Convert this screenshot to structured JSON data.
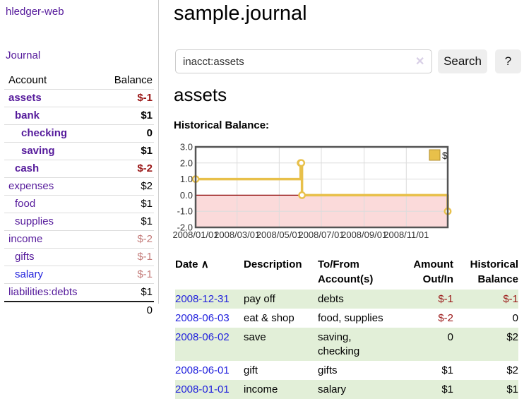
{
  "app": {
    "brand": "hledger-web",
    "nav": {
      "journal": "Journal"
    }
  },
  "sidebar": {
    "columns": {
      "account": "Account",
      "balance": "Balance"
    },
    "accounts": [
      {
        "name": "assets",
        "depth": 0,
        "bold": true,
        "link": "purple",
        "balance": "$-1",
        "balance_tone": "neg-strong"
      },
      {
        "name": "bank",
        "depth": 1,
        "bold": true,
        "link": "purple",
        "balance": "$1",
        "balance_tone": "plain"
      },
      {
        "name": "checking",
        "depth": 2,
        "bold": true,
        "link": "purple",
        "balance": "0",
        "balance_tone": "plain"
      },
      {
        "name": "saving",
        "depth": 2,
        "bold": true,
        "link": "purple",
        "balance": "$1",
        "balance_tone": "plain"
      },
      {
        "name": "cash",
        "depth": 1,
        "bold": true,
        "link": "purple",
        "balance": "$-2",
        "balance_tone": "neg-strong"
      },
      {
        "name": "expenses",
        "depth": 0,
        "bold": false,
        "link": "purple",
        "balance": "$2",
        "balance_tone": "plain"
      },
      {
        "name": "food",
        "depth": 1,
        "bold": false,
        "link": "purple",
        "balance": "$1",
        "balance_tone": "plain"
      },
      {
        "name": "supplies",
        "depth": 1,
        "bold": false,
        "link": "purple",
        "balance": "$1",
        "balance_tone": "plain"
      },
      {
        "name": "income",
        "depth": 0,
        "bold": false,
        "link": "purple",
        "balance": "$-2",
        "balance_tone": "neg-soft"
      },
      {
        "name": "gifts",
        "depth": 1,
        "bold": false,
        "link": "purple",
        "balance": "$-1",
        "balance_tone": "neg-soft"
      },
      {
        "name": "salary",
        "depth": 1,
        "bold": false,
        "link": "blue",
        "balance": "$-1",
        "balance_tone": "neg-soft"
      },
      {
        "name": "liabilities:debts",
        "depth": 0,
        "bold": false,
        "link": "purple",
        "balance": "$1",
        "balance_tone": "plain"
      }
    ],
    "total": "0"
  },
  "main": {
    "title": "sample.journal",
    "search": {
      "value": "inacct:assets",
      "clear_icon": "✕",
      "search_button": "Search",
      "help_button": "?"
    },
    "account_heading": "assets",
    "chart_heading": "Historical Balance:"
  },
  "chart_data": {
    "type": "line",
    "step": true,
    "title": "Historical Balance",
    "legend": [
      {
        "label": "$",
        "color": "#e8c04a"
      }
    ],
    "legend_position": "top-right",
    "grid": true,
    "x_range": [
      "2008-01-01",
      "2008-12-31"
    ],
    "ylim": [
      -2,
      3
    ],
    "x_ticks": [
      "2008/01/01",
      "2008/03/01",
      "2008/05/01",
      "2008/07/01",
      "2008/09/01",
      "2008/11/01"
    ],
    "y_ticks": [
      3.0,
      2.0,
      1.0,
      0.0,
      -1.0,
      -2.0
    ],
    "series": [
      {
        "name": "$",
        "points": [
          {
            "date": "2008-01-01",
            "value": 1
          },
          {
            "date": "2008-06-01",
            "value": 2
          },
          {
            "date": "2008-06-02",
            "value": 2
          },
          {
            "date": "2008-06-03",
            "value": 0
          },
          {
            "date": "2008-12-31",
            "value": -1
          }
        ]
      }
    ],
    "colors": {
      "line": "#e8c04a",
      "marker_fill": "#ffffff",
      "zero_line": "#8b0000",
      "negative_fill": "#fbdada",
      "grid": "#dcdcdc",
      "border": "#545454",
      "legend_border": "#b38f2f"
    }
  },
  "register": {
    "columns": {
      "date": "Date",
      "sort_indicator": "∧",
      "description": "Description",
      "accounts": "To/From Account(s)",
      "amount": "Amount Out/In",
      "balance": "Historical Balance"
    },
    "rows": [
      {
        "date": "2008-12-31",
        "description": "pay off",
        "accounts": "debts",
        "amount": "$-1",
        "amount_tone": "neg-strong",
        "balance": "$-1",
        "balance_tone": "neg-strong"
      },
      {
        "date": "2008-06-03",
        "description": "eat & shop",
        "accounts": "food, supplies",
        "amount": "$-2",
        "amount_tone": "neg-strong",
        "balance": "0",
        "balance_tone": "plain"
      },
      {
        "date": "2008-06-02",
        "description": "save",
        "accounts": "saving,\nchecking",
        "amount": "0",
        "amount_tone": "plain",
        "balance": "$2",
        "balance_tone": "plain"
      },
      {
        "date": "2008-06-01",
        "description": "gift",
        "accounts": "gifts",
        "amount": "$1",
        "amount_tone": "plain",
        "balance": "$2",
        "balance_tone": "plain"
      },
      {
        "date": "2008-01-01",
        "description": "income",
        "accounts": "salary",
        "amount": "$1",
        "amount_tone": "plain",
        "balance": "$1",
        "balance_tone": "plain"
      }
    ]
  },
  "colors": {
    "link_purple": "#551a9b",
    "link_blue": "#2222dd",
    "neg_strong": "#9a1616",
    "neg_soft": "#c47c7a",
    "row_stripe": "#e2efd8"
  }
}
